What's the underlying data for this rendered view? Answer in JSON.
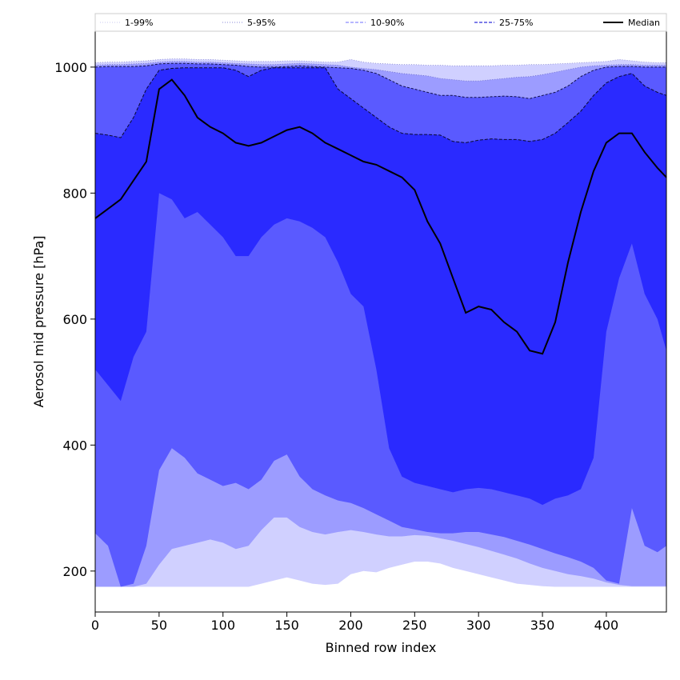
{
  "chart_data": {
    "type": "area",
    "title": "",
    "xlabel": "Binned row index",
    "ylabel": "Aerosol mid pressure [hPa]",
    "xlim": [
      0,
      447
    ],
    "ylim": [
      135,
      1057
    ],
    "x_ticks": [
      0,
      50,
      100,
      150,
      200,
      250,
      300,
      350,
      400
    ],
    "y_ticks": [
      200,
      400,
      600,
      800,
      1000
    ],
    "grid": false,
    "legend_position": "top",
    "legend": [
      {
        "label": "1-99%",
        "style": "dotted"
      },
      {
        "label": "5-95%",
        "style": "dotted"
      },
      {
        "label": "10-90%",
        "style": "dashed"
      },
      {
        "label": "25-75%",
        "style": "dashed"
      },
      {
        "label": "Median",
        "style": "solid"
      }
    ],
    "x": [
      0,
      10,
      20,
      30,
      40,
      50,
      60,
      70,
      80,
      90,
      100,
      110,
      120,
      130,
      140,
      150,
      160,
      170,
      180,
      190,
      200,
      210,
      220,
      230,
      240,
      250,
      260,
      270,
      280,
      290,
      300,
      310,
      320,
      330,
      340,
      350,
      360,
      370,
      380,
      390,
      400,
      410,
      420,
      430,
      440,
      447
    ],
    "series": [
      {
        "name": "Median",
        "values": [
          760,
          775,
          790,
          820,
          850,
          965,
          980,
          955,
          920,
          905,
          895,
          880,
          875,
          880,
          890,
          900,
          905,
          895,
          880,
          870,
          860,
          850,
          845,
          835,
          825,
          805,
          755,
          720,
          665,
          610,
          620,
          615,
          595,
          580,
          550,
          545,
          595,
          690,
          770,
          835,
          880,
          895,
          895,
          865,
          840,
          825
        ]
      },
      {
        "name": "p1",
        "values": [
          175,
          175,
          175,
          175,
          175,
          175,
          175,
          175,
          175,
          175,
          175,
          175,
          175,
          180,
          185,
          190,
          185,
          180,
          178,
          180,
          195,
          200,
          198,
          205,
          210,
          215,
          215,
          212,
          205,
          200,
          195,
          190,
          185,
          180,
          178,
          176,
          175,
          175,
          175,
          175,
          175,
          175,
          175,
          175,
          175,
          175
        ]
      },
      {
        "name": "p5",
        "values": [
          175,
          175,
          175,
          175,
          180,
          210,
          235,
          240,
          245,
          250,
          245,
          235,
          240,
          265,
          285,
          285,
          270,
          262,
          258,
          262,
          265,
          262,
          258,
          255,
          255,
          257,
          256,
          252,
          248,
          243,
          238,
          232,
          226,
          220,
          212,
          205,
          200,
          195,
          192,
          188,
          182,
          178,
          176,
          176,
          176,
          176
        ]
      },
      {
        "name": "p10",
        "values": [
          260,
          240,
          175,
          180,
          240,
          360,
          395,
          380,
          355,
          345,
          335,
          340,
          330,
          345,
          375,
          385,
          350,
          330,
          320,
          312,
          308,
          300,
          290,
          280,
          270,
          266,
          262,
          260,
          260,
          262,
          262,
          258,
          254,
          248,
          242,
          235,
          228,
          222,
          215,
          205,
          185,
          180,
          300,
          240,
          230,
          240
        ]
      },
      {
        "name": "p25",
        "values": [
          520,
          495,
          470,
          540,
          580,
          800,
          790,
          760,
          770,
          750,
          730,
          700,
          700,
          730,
          750,
          760,
          755,
          745,
          730,
          690,
          640,
          620,
          520,
          395,
          350,
          340,
          335,
          330,
          325,
          330,
          332,
          330,
          325,
          320,
          315,
          305,
          315,
          320,
          330,
          380,
          580,
          665,
          720,
          640,
          600,
          550
        ]
      },
      {
        "name": "p75",
        "values": [
          895,
          892,
          888,
          920,
          965,
          995,
          998,
          999,
          999,
          999,
          999,
          995,
          985,
          995,
          999,
          999,
          999,
          999,
          999,
          965,
          950,
          935,
          920,
          905,
          895,
          893,
          893,
          892,
          882,
          880,
          884,
          886,
          885,
          885,
          882,
          885,
          895,
          912,
          930,
          955,
          975,
          985,
          990,
          970,
          960,
          955
        ]
      },
      {
        "name": "p90",
        "values": [
          1000,
          1001,
          1001,
          1001,
          1002,
          1005,
          1006,
          1006,
          1005,
          1005,
          1004,
          1003,
          1001,
          1000,
          1000,
          1001,
          1002,
          1001,
          1000,
          999,
          998,
          995,
          990,
          980,
          970,
          965,
          960,
          955,
          955,
          952,
          952,
          953,
          954,
          953,
          950,
          955,
          960,
          970,
          985,
          995,
          1000,
          1001,
          1001,
          1000,
          1000,
          1000
        ]
      },
      {
        "name": "p95",
        "values": [
          1003,
          1004,
          1004,
          1005,
          1006,
          1008,
          1009,
          1009,
          1008,
          1008,
          1007,
          1006,
          1005,
          1004,
          1004,
          1005,
          1006,
          1005,
          1004,
          1003,
          1000,
          998,
          996,
          993,
          990,
          988,
          986,
          982,
          980,
          978,
          978,
          980,
          982,
          984,
          985,
          988,
          992,
          996,
          1000,
          1002,
          1003,
          1004,
          1004,
          1003,
          1003,
          1003
        ]
      },
      {
        "name": "p99",
        "values": [
          1007,
          1008,
          1008,
          1009,
          1010,
          1012,
          1013,
          1013,
          1012,
          1012,
          1011,
          1010,
          1009,
          1009,
          1009,
          1010,
          1010,
          1009,
          1008,
          1008,
          1012,
          1008,
          1006,
          1005,
          1004,
          1004,
          1003,
          1003,
          1002,
          1002,
          1002,
          1002,
          1003,
          1003,
          1004,
          1004,
          1005,
          1006,
          1007,
          1008,
          1009,
          1012,
          1010,
          1008,
          1007,
          1007
        ]
      }
    ],
    "colors": {
      "band_1_99": "#d0d0ff",
      "band_5_95": "#9c9cff",
      "band_10_90": "#5a5aff",
      "band_25_75": "#2a2aff",
      "median": "#000000"
    }
  }
}
